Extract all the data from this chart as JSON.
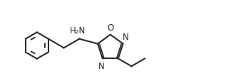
{
  "background_color": "#ffffff",
  "line_color": "#2a2a2a",
  "line_width": 1.5,
  "text_color": "#2a2a2a",
  "font_size": 8.5,
  "nh2_label": "H₂N",
  "n_label": "N",
  "o_label": "O",
  "figsize": [
    3.17,
    1.15
  ],
  "dpi": 100,
  "xlim": [
    0,
    10.5
  ],
  "ylim": [
    0,
    3.6
  ]
}
